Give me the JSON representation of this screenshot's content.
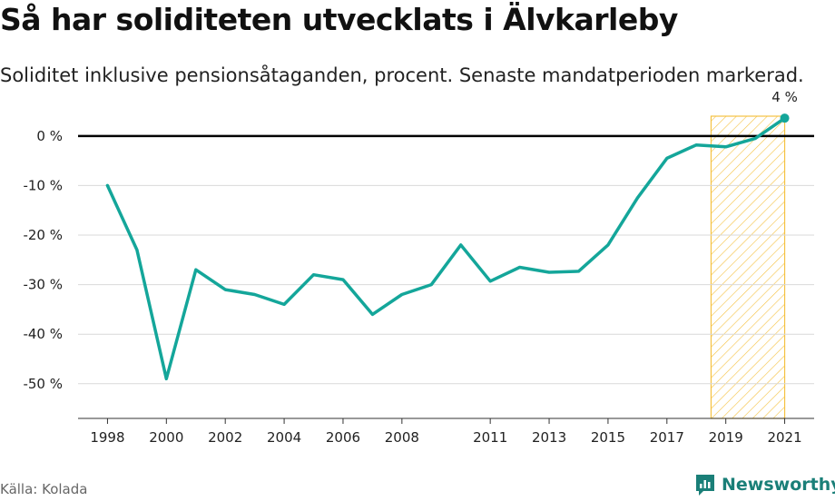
{
  "title": "Så har soliditeten utvecklats i Älvkarleby",
  "subtitle": "Soliditet inklusive pensionsåtaganden, procent. Senaste mandatperioden markerad.",
  "source": "Källa: Kolada",
  "brand": "Newsworthy",
  "colors": {
    "line": "#14a69a",
    "highlight": "#f5c242",
    "zero": "#000000",
    "grid": "#d9d9d9",
    "brand": "#1a7f78"
  },
  "chart_data": {
    "type": "line",
    "ylim": [
      -57,
      4
    ],
    "yticks": [
      0,
      -10,
      -20,
      -30,
      -40,
      -50
    ],
    "ytick_labels": [
      "0 %",
      "-10 %",
      "-20 %",
      "-30 %",
      "-40 %",
      "-50 %"
    ],
    "xlim": [
      1997,
      2022
    ],
    "xticks": [
      1998,
      2000,
      2002,
      2004,
      2006,
      2008,
      2011,
      2013,
      2015,
      2017,
      2019,
      2021
    ],
    "xtick_labels": [
      "1998",
      "2000",
      "2002",
      "2004",
      "2006",
      "2008",
      "2011",
      "2013",
      "2015",
      "2017",
      "2019",
      "2021"
    ],
    "highlight_range": [
      2018.5,
      2021
    ],
    "series": [
      {
        "x": [
          1998,
          1999,
          2000,
          2001,
          2002,
          2003,
          2004,
          2005,
          2006,
          2007,
          2008,
          2009,
          2010,
          2011,
          2012,
          2013,
          2014,
          2015,
          2016,
          2017,
          2018,
          2019,
          2020,
          2021
        ],
        "y": [
          -10,
          -23,
          -49,
          -27,
          -31,
          -32,
          -34,
          -28,
          -29,
          -36,
          -32,
          -30,
          -22,
          -29.3,
          -26.5,
          -27.5,
          -27.3,
          -22,
          -12.5,
          -4.5,
          -1.8,
          -2.2,
          -0.5,
          3.6
        ]
      }
    ],
    "end_label": "4 %"
  }
}
